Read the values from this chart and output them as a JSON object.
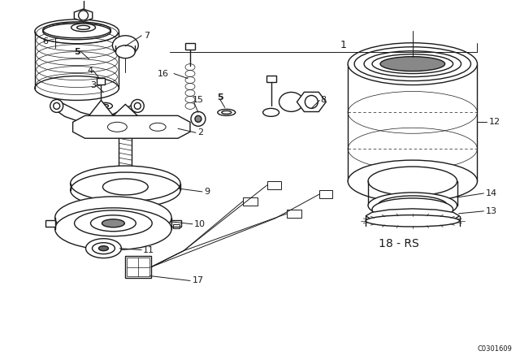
{
  "bg_color": "#ffffff",
  "line_color": "#1a1a1a",
  "watermark": "C0301609",
  "label_18rs": "18 - RS",
  "figsize": [
    6.4,
    4.48
  ],
  "dpi": 100
}
